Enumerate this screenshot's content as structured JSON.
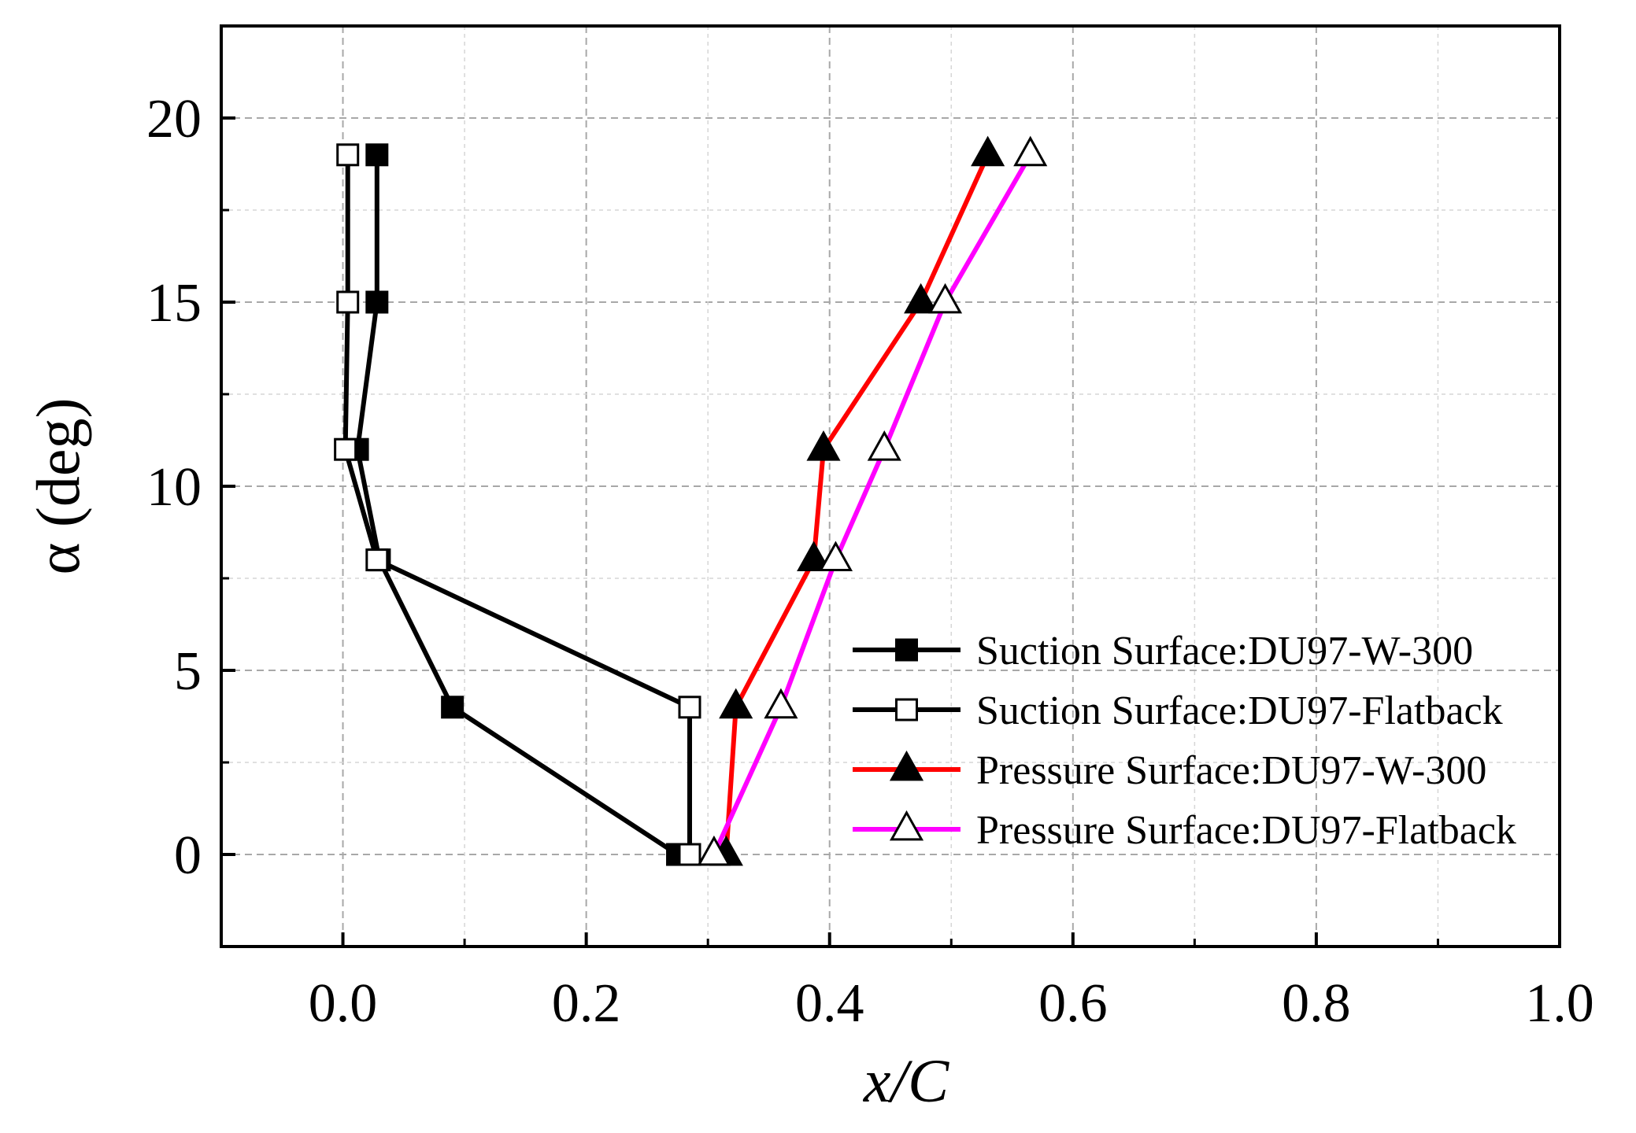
{
  "chart_data": {
    "type": "line",
    "title": "",
    "xlabel": "x/C",
    "ylabel": "α (deg)",
    "xlim": [
      -0.1,
      1.0
    ],
    "ylim": [
      -2.5,
      22.5
    ],
    "x_ticks": [
      0.0,
      0.2,
      0.4,
      0.6,
      0.8,
      1.0
    ],
    "x_tick_labels": [
      "0.0",
      "0.2",
      "0.4",
      "0.6",
      "0.8",
      "1.0"
    ],
    "y_ticks": [
      0,
      5,
      10,
      15,
      20
    ],
    "y_tick_labels": [
      "0",
      "5",
      "10",
      "15",
      "20"
    ],
    "x_minor_ticks": [
      -0.1,
      0.1,
      0.3,
      0.5,
      0.7,
      0.9
    ],
    "y_minor_ticks": [
      -2.5,
      2.5,
      7.5,
      12.5,
      17.5,
      22.5
    ],
    "grid": true,
    "legend_position": "center-right",
    "series": [
      {
        "name": "Suction Surface:DU97-W-300",
        "color": "#000000",
        "marker": "square-filled",
        "points": [
          [
            0.275,
            0
          ],
          [
            0.09,
            4
          ],
          [
            0.03,
            8
          ],
          [
            0.012,
            11
          ],
          [
            0.028,
            15
          ],
          [
            0.028,
            19
          ]
        ]
      },
      {
        "name": "Suction Surface:DU97-Flatback",
        "color": "#000000",
        "marker": "square-open",
        "points": [
          [
            0.285,
            0
          ],
          [
            0.285,
            4
          ],
          [
            0.028,
            8
          ],
          [
            0.002,
            11
          ],
          [
            0.004,
            15
          ],
          [
            0.004,
            19
          ]
        ]
      },
      {
        "name": "Pressure Surface:DU97-W-300",
        "color": "#ff0000",
        "marker": "triangle-filled",
        "points": [
          [
            0.315,
            0
          ],
          [
            0.323,
            4
          ],
          [
            0.387,
            8
          ],
          [
            0.395,
            11
          ],
          [
            0.475,
            15
          ],
          [
            0.53,
            19
          ]
        ]
      },
      {
        "name": "Pressure Surface:DU97-Flatback",
        "color": "#ff00ff",
        "marker": "triangle-open",
        "points": [
          [
            0.305,
            0
          ],
          [
            0.36,
            4
          ],
          [
            0.405,
            8
          ],
          [
            0.445,
            11
          ],
          [
            0.495,
            15
          ],
          [
            0.565,
            19
          ]
        ]
      }
    ]
  }
}
